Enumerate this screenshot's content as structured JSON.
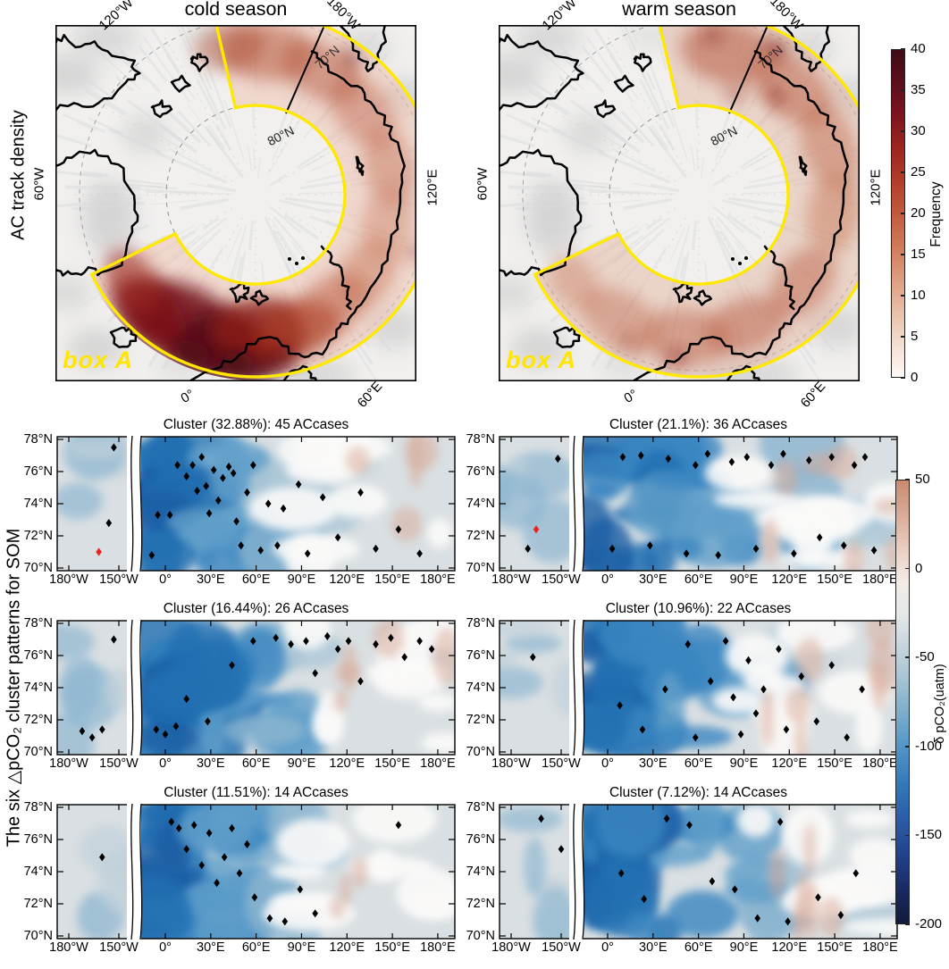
{
  "chart_data": [
    {
      "id": "ac_track_density",
      "type": "heatmap",
      "ylabel": "AC track density",
      "projection": "north_polar_stereographic",
      "panels": [
        "cold season",
        "warm season"
      ],
      "region_annotation": "box A",
      "region": "annular sector between about 70°N and 80°N",
      "pattern_summary": {
        "cold": "highest AC track frequency (>30) concentrated over the 0°-60°E sector (Nordic/Barents Seas)",
        "warm": "moderate frequencies (5-20) spread more uniformly around box A with local maxima 60°E-180°"
      },
      "geo_labels": {
        "lon_120w": "120°W",
        "lon_180w": "180°W",
        "lon_60w": "60°W",
        "lon_120e": "120°E",
        "lon_0": "0°",
        "lon_60e": "60°E",
        "lat_80n": "80°N",
        "lat_70n": "70°N"
      },
      "colorbar": {
        "label": "Frequency",
        "min": 0,
        "max": 40,
        "ticks": [
          40,
          35,
          30,
          25,
          20,
          15,
          10,
          5,
          0
        ],
        "gradient_top_to_bottom": [
          "#3f0b17",
          "#5c0e1d",
          "#7e141f",
          "#9c2520",
          "#b23d2a",
          "#c25a3e",
          "#cf7a59",
          "#dd9c7f",
          "#e9bfa8",
          "#f4ded1",
          "#fdf9f7"
        ]
      }
    },
    {
      "id": "pco2_som_clusters",
      "type": "heatmap",
      "ylabel": "The six △pCO₂ cluster patterns for SOM",
      "x_axis": {
        "ticks": [
          {
            "lon": -180,
            "label": "180°W"
          },
          {
            "lon": -150,
            "label": "150°W"
          },
          {
            "lon": 0,
            "label": "0°"
          },
          {
            "lon": 30,
            "label": "30°E"
          },
          {
            "lon": 60,
            "label": "60°E"
          },
          {
            "lon": 90,
            "label": "90°E"
          },
          {
            "lon": 120,
            "label": "120°E"
          },
          {
            "lon": 150,
            "label": "150°E"
          },
          {
            "lon": 180,
            "label": "180°E"
          }
        ],
        "break_between": [
          "150°W",
          "0°"
        ]
      },
      "y_axis": {
        "ticks": [
          {
            "lat": 78,
            "label": "78°N"
          },
          {
            "lat": 76,
            "label": "76°N"
          },
          {
            "lat": 74,
            "label": "74°N"
          },
          {
            "lat": 72,
            "label": "72°N"
          },
          {
            "lat": 70,
            "label": "70°N"
          }
        ]
      },
      "colorbar": {
        "label": "δ pCO₂(uatm)",
        "min": -200,
        "max": 50,
        "ticks": [
          50,
          0,
          -50,
          -100,
          -150,
          -200
        ],
        "gradient_top_to_bottom": [
          "#c98a71",
          "#d8ab96",
          "#e9cec0",
          "#f3ece7",
          "#e3e7e8",
          "#c3d3da",
          "#9fc0d2",
          "#74a9cb",
          "#4d90c4",
          "#3376b8",
          "#2a5ba6",
          "#23418c",
          "#192a62",
          "#111b3c"
        ]
      },
      "fill_palette": [
        "#1a5ea5",
        "#2270b2",
        "#3a86c1",
        "#619fca",
        "#8bb5d0",
        "#adc8d7",
        "#ccd8de",
        "#fbfaf9",
        "#d8a896"
      ],
      "panels": [
        {
          "title": "Cluster (32.88%): 45 ACcases",
          "percent": 32.88,
          "ac_cases": 45,
          "ac_markers": [
            [
              -153,
              77.5
            ],
            [
              -156,
              72.8
            ],
            [
              -9,
              70.8
            ],
            [
              -5,
              73.3
            ],
            [
              3,
              73.3
            ],
            [
              8,
              76.4
            ],
            [
              14,
              75.7
            ],
            [
              18,
              76.4
            ],
            [
              21,
              74.8
            ],
            [
              24,
              76.9
            ],
            [
              27,
              75.1
            ],
            [
              29,
              73.4
            ],
            [
              32,
              76.1
            ],
            [
              35,
              74.2
            ],
            [
              38,
              75.6
            ],
            [
              42,
              76.3
            ],
            [
              45,
              75.9
            ],
            [
              47,
              72.9
            ],
            [
              50,
              71.4
            ],
            [
              54,
              74.7
            ],
            [
              58,
              76.4
            ],
            [
              63,
              71.1
            ],
            [
              68,
              74
            ],
            [
              74,
              71.4
            ],
            [
              78,
              73.7
            ],
            [
              88,
              75.2
            ],
            [
              94,
              70.9
            ],
            [
              104,
              74.4
            ],
            [
              114,
              71.9
            ],
            [
              129,
              74.7
            ],
            [
              139,
              71.2
            ],
            [
              154,
              72.4
            ],
            [
              168,
              70.9
            ]
          ],
          "red_marker": [
            -162,
            71
          ]
        },
        {
          "title": "Cluster (21.1%): 36 ACcases",
          "percent": 21.1,
          "ac_cases": 36,
          "ac_markers": [
            [
              -170,
              71.2
            ],
            [
              -152,
              76.8
            ],
            [
              3,
              71.2
            ],
            [
              10,
              76.9
            ],
            [
              22,
              77
            ],
            [
              28,
              71.4
            ],
            [
              40,
              76.8
            ],
            [
              52,
              70.9
            ],
            [
              58,
              76.4
            ],
            [
              66,
              77.1
            ],
            [
              73,
              70.8
            ],
            [
              82,
              76.6
            ],
            [
              92,
              76.9
            ],
            [
              98,
              71.2
            ],
            [
              108,
              76.4
            ],
            [
              116,
              77.1
            ],
            [
              123,
              70.9
            ],
            [
              133,
              76.7
            ],
            [
              140,
              71.9
            ],
            [
              148,
              76.9
            ],
            [
              156,
              71.4
            ],
            [
              163,
              76.4
            ],
            [
              170,
              76.9
            ],
            [
              176,
              71.1
            ]
          ],
          "red_marker": [
            -165,
            72.4
          ]
        },
        {
          "title": "Cluster (16.44%): 26 ACcases",
          "percent": 16.44,
          "ac_cases": 26,
          "ac_markers": [
            [
              -172,
              71.3
            ],
            [
              -166,
              70.9
            ],
            [
              -160,
              71.4
            ],
            [
              -153,
              77
            ],
            [
              -6,
              71.4
            ],
            [
              0,
              71.1
            ],
            [
              7,
              71.6
            ],
            [
              14,
              73.3
            ],
            [
              28,
              71.9
            ],
            [
              44,
              75.4
            ],
            [
              58,
              76.9
            ],
            [
              73,
              77.1
            ],
            [
              83,
              76.7
            ],
            [
              93,
              76.9
            ],
            [
              99,
              74.9
            ],
            [
              107,
              77.2
            ],
            [
              114,
              76.4
            ],
            [
              121,
              76.9
            ],
            [
              129,
              74.4
            ],
            [
              139,
              76.7
            ],
            [
              149,
              77.1
            ],
            [
              158,
              75.9
            ],
            [
              168,
              76.9
            ],
            [
              176,
              76.4
            ]
          ],
          "red_marker": null
        },
        {
          "title": "Cluster (10.96%): 22 ACcases",
          "percent": 10.96,
          "ac_cases": 22,
          "ac_markers": [
            [
              -167,
              75.9
            ],
            [
              8,
              72.9
            ],
            [
              23,
              71.4
            ],
            [
              38,
              73.9
            ],
            [
              53,
              76.7
            ],
            [
              58,
              70.9
            ],
            [
              68,
              74.4
            ],
            [
              78,
              76.9
            ],
            [
              83,
              73.4
            ],
            [
              88,
              71.1
            ],
            [
              93,
              75.7
            ],
            [
              98,
              72.4
            ],
            [
              103,
              73.9
            ],
            [
              113,
              76.4
            ],
            [
              118,
              71.4
            ],
            [
              128,
              74.7
            ],
            [
              138,
              71.9
            ],
            [
              148,
              75.4
            ],
            [
              158,
              70.9
            ],
            [
              168,
              73.9
            ]
          ],
          "red_marker": null
        },
        {
          "title": "Cluster (11.51%): 14 ACcases",
          "percent": 11.51,
          "ac_cases": 14,
          "ac_markers": [
            [
              -160,
              74.9
            ],
            [
              4,
              77.1
            ],
            [
              9,
              76.7
            ],
            [
              14,
              75.4
            ],
            [
              19,
              76.9
            ],
            [
              24,
              74.4
            ],
            [
              29,
              76.4
            ],
            [
              34,
              73.3
            ],
            [
              39,
              74.9
            ],
            [
              44,
              76.7
            ],
            [
              49,
              73.9
            ],
            [
              54,
              75.7
            ],
            [
              59,
              72.4
            ],
            [
              69,
              71.1
            ],
            [
              79,
              70.9
            ],
            [
              89,
              72.9
            ],
            [
              99,
              71.4
            ],
            [
              154,
              76.9
            ]
          ],
          "red_marker": null
        },
        {
          "title": "Cluster (7.12%): 14 ACcases",
          "percent": 7.12,
          "ac_cases": 14,
          "ac_markers": [
            [
              -162,
              77.3
            ],
            [
              -150,
              75.4
            ],
            [
              9,
              73.9
            ],
            [
              24,
              72.3
            ],
            [
              39,
              77.3
            ],
            [
              54,
              76.9
            ],
            [
              69,
              73.4
            ],
            [
              84,
              72.9
            ],
            [
              99,
              71.1
            ],
            [
              114,
              77.1
            ],
            [
              119,
              70.9
            ],
            [
              139,
              72.4
            ],
            [
              154,
              71.3
            ],
            [
              164,
              73.9
            ]
          ],
          "red_marker": null
        }
      ]
    }
  ]
}
